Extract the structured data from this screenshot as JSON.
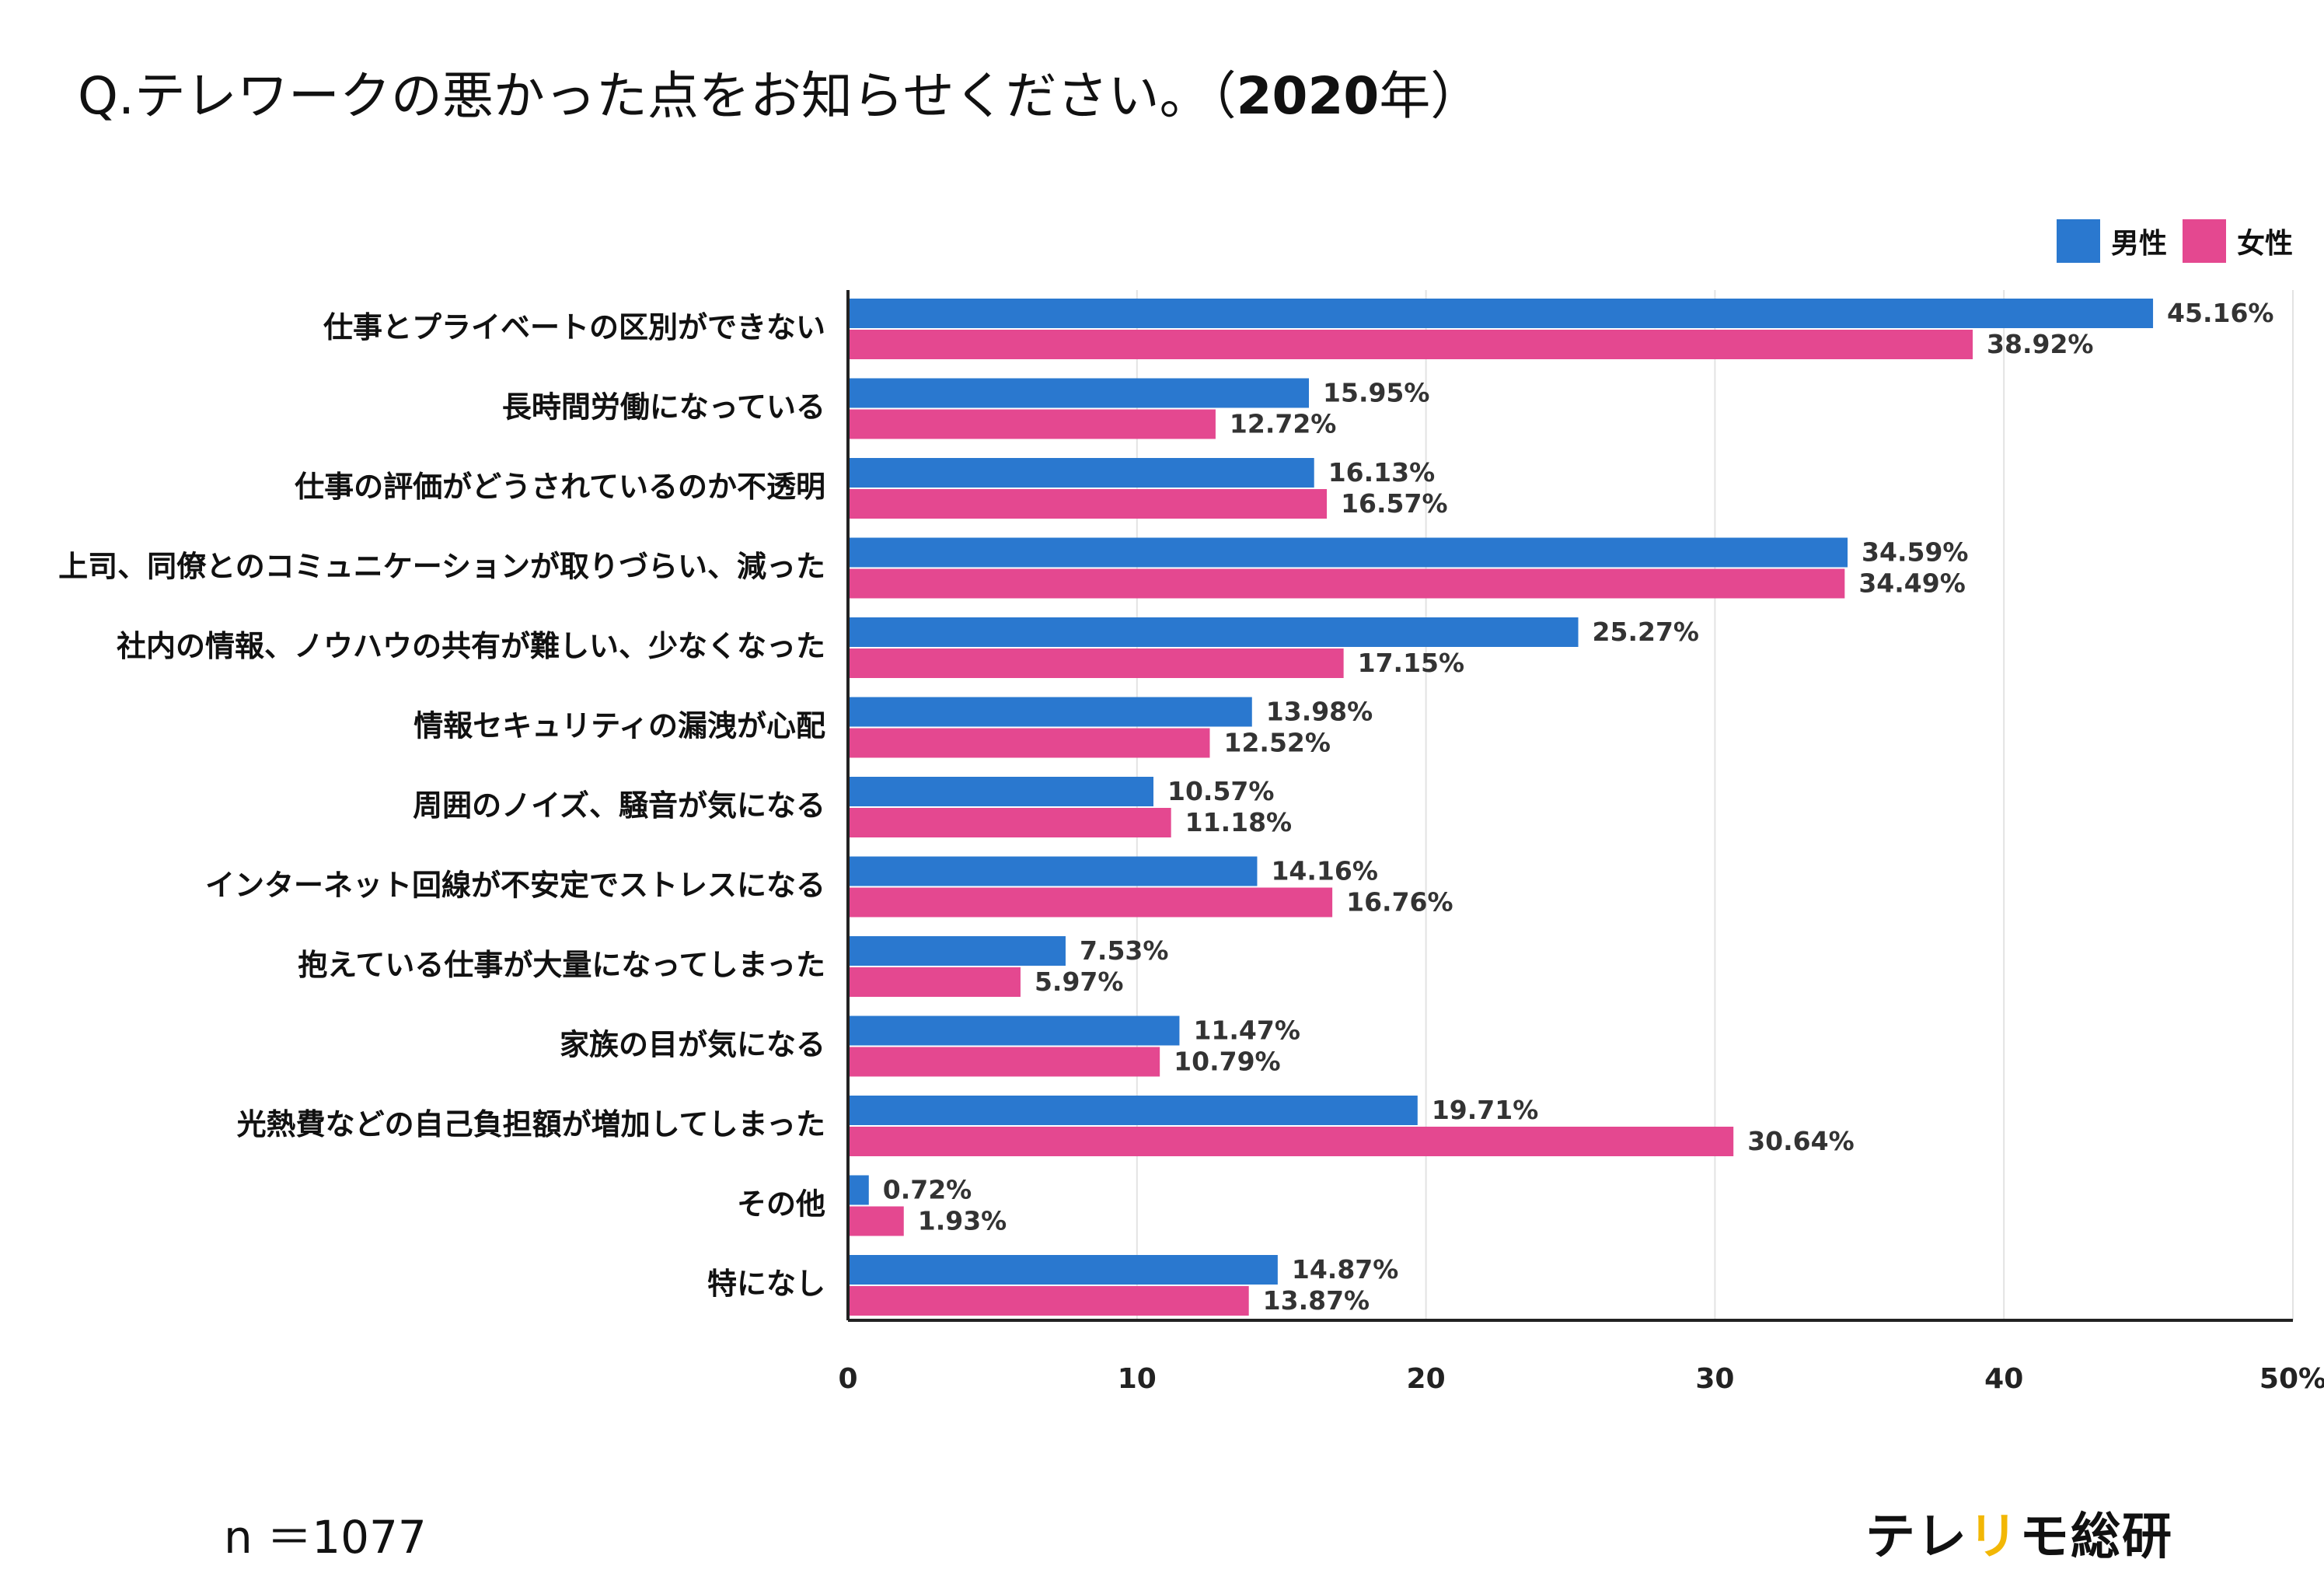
{
  "title": {
    "text": "Q.テレワークの悪かった点をお知らせください。（",
    "year": "2020",
    "suffix": "年）"
  },
  "sample_size": "n ＝1077",
  "logo": {
    "part1": "テレ",
    "part2": "リ",
    "part3": "モ総研"
  },
  "colors": {
    "male": "#2a78cf",
    "female": "#e44890",
    "grid": "#e3e3e3",
    "axis": "#222222"
  },
  "chart_data": {
    "type": "bar",
    "orientation": "horizontal",
    "title": "Q.テレワークの悪かった点をお知らせください。（2020年）",
    "xlim": [
      0,
      50
    ],
    "x_ticks": [
      "0",
      "10",
      "20",
      "30",
      "40",
      "50%"
    ],
    "grid": true,
    "legend_position": "top-right",
    "categories": [
      "仕事とプライベートの区別ができない",
      "長時間労働になっている",
      "仕事の評価がどうされているのか不透明",
      "上司、同僚とのコミュニケーションが取りづらい、減った",
      "社内の情報、ノウハウの共有が難しい、少なくなった",
      "情報セキュリティの漏洩が心配",
      "周囲のノイズ、騒音が気になる",
      "インターネット回線が不安定でストレスになる",
      "抱えている仕事が大量になってしまった",
      "家族の目が気になる",
      "光熱費などの自己負担額が増加してしまった",
      "その他",
      "特になし"
    ],
    "series": [
      {
        "name": "男性",
        "color": "#2a78cf",
        "values": [
          45.16,
          15.95,
          16.13,
          34.59,
          25.27,
          13.98,
          10.57,
          14.16,
          7.53,
          11.47,
          19.71,
          0.72,
          14.87
        ],
        "labels": [
          "45.16%",
          "15.95%",
          "16.13%",
          "34.59%",
          "25.27%",
          "13.98%",
          "10.57%",
          "14.16%",
          "7.53%",
          "11.47%",
          "19.71%",
          "0.72%",
          "14.87%"
        ]
      },
      {
        "name": "女性",
        "color": "#e44890",
        "values": [
          38.92,
          12.72,
          16.57,
          34.49,
          17.15,
          12.52,
          11.18,
          16.76,
          5.97,
          10.79,
          30.64,
          1.93,
          13.87
        ],
        "labels": [
          "38.92%",
          "12.72%",
          "16.57%",
          "34.49%",
          "17.15%",
          "12.52%",
          "11.18%",
          "16.76%",
          "5.97%",
          "10.79%",
          "30.64%",
          "1.93%",
          "13.87%"
        ]
      }
    ]
  }
}
